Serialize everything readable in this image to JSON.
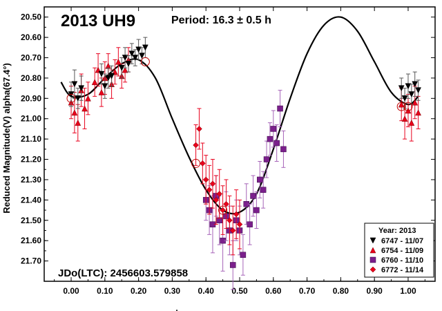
{
  "chart_data": {
    "type": "scatter",
    "title": "2013 UH9",
    "subtitle": "Period: 16.3 ± 0.5 h",
    "annotation": "JDo(LTC): 2456603.579858",
    "ylabel": "Reduced Magnitude(V) alpha(67.4°)",
    "xlabel": ".",
    "xlim": [
      -0.08,
      1.08
    ],
    "ylim": [
      20.45,
      21.8
    ],
    "y_inverted": true,
    "x_ticks": [
      "0.00",
      "0.10",
      "0.20",
      "0.30",
      "0.40",
      "0.50",
      "0.60",
      "0.70",
      "0.80",
      "0.90",
      "1.00"
    ],
    "y_ticks": [
      "20.50",
      "20.60",
      "20.70",
      "20.80",
      "20.90",
      "21.00",
      "21.10",
      "21.20",
      "21.30",
      "21.40",
      "21.50",
      "21.60",
      "21.70"
    ],
    "legend": {
      "title": "Year: 2013",
      "position": "bottom-right"
    },
    "fit_curve": {
      "x": [
        -0.03,
        0.0,
        0.05,
        0.1,
        0.15,
        0.2,
        0.25,
        0.3,
        0.35,
        0.4,
        0.45,
        0.5,
        0.55,
        0.6,
        0.65,
        0.7,
        0.75,
        0.8,
        0.85,
        0.9,
        0.95,
        1.0,
        1.03
      ],
      "y": [
        20.82,
        20.89,
        20.88,
        20.8,
        20.73,
        20.71,
        20.8,
        21.0,
        21.19,
        21.35,
        21.45,
        21.46,
        21.37,
        21.15,
        20.9,
        20.68,
        20.54,
        20.5,
        20.57,
        20.72,
        20.87,
        20.93,
        20.89
      ]
    },
    "series": [
      {
        "name": "6747 - 11/07",
        "marker": "triangle-down",
        "color": "#000000",
        "points": [
          {
            "x": 0.0,
            "y": 20.88,
            "e": 0.06
          },
          {
            "x": 0.01,
            "y": 20.83,
            "e": 0.07
          },
          {
            "x": 0.02,
            "y": 20.9,
            "e": 0.05
          },
          {
            "x": 0.03,
            "y": 20.85,
            "e": 0.06
          },
          {
            "x": 0.09,
            "y": 20.78,
            "e": 0.05
          },
          {
            "x": 0.1,
            "y": 20.84,
            "e": 0.06
          },
          {
            "x": 0.11,
            "y": 20.8,
            "e": 0.05
          },
          {
            "x": 0.12,
            "y": 20.79,
            "e": 0.05
          },
          {
            "x": 0.15,
            "y": 20.75,
            "e": 0.05
          },
          {
            "x": 0.16,
            "y": 20.7,
            "e": 0.05
          },
          {
            "x": 0.17,
            "y": 20.73,
            "e": 0.04
          },
          {
            "x": 0.18,
            "y": 20.68,
            "e": 0.05
          },
          {
            "x": 0.19,
            "y": 20.7,
            "e": 0.04
          },
          {
            "x": 0.2,
            "y": 20.66,
            "e": 0.05
          },
          {
            "x": 0.21,
            "y": 20.69,
            "e": 0.04
          },
          {
            "x": 0.22,
            "y": 20.65,
            "e": 0.05
          },
          {
            "x": 0.98,
            "y": 20.85,
            "e": 0.05
          },
          {
            "x": 0.99,
            "y": 20.9,
            "e": 0.05
          },
          {
            "x": 1.0,
            "y": 20.84,
            "e": 0.06
          },
          {
            "x": 1.01,
            "y": 20.88,
            "e": 0.05
          },
          {
            "x": 1.02,
            "y": 20.83,
            "e": 0.06
          },
          {
            "x": 1.03,
            "y": 20.86,
            "e": 0.05
          }
        ]
      },
      {
        "name": "6754 - 11/09",
        "marker": "triangle-up",
        "color": "#e8001c",
        "points": [
          {
            "x": 0.0,
            "y": 20.92,
            "e": 0.08
          },
          {
            "x": 0.01,
            "y": 20.97,
            "e": 0.1
          },
          {
            "x": 0.02,
            "y": 21.02,
            "e": 0.09
          },
          {
            "x": 0.03,
            "y": 20.86,
            "e": 0.08
          },
          {
            "x": 0.04,
            "y": 20.95,
            "e": 0.1
          },
          {
            "x": 0.05,
            "y": 20.9,
            "e": 0.08
          },
          {
            "x": 0.07,
            "y": 20.82,
            "e": 0.07
          },
          {
            "x": 0.08,
            "y": 20.76,
            "e": 0.08
          },
          {
            "x": 0.09,
            "y": 20.87,
            "e": 0.07
          },
          {
            "x": 0.1,
            "y": 20.8,
            "e": 0.08
          },
          {
            "x": 0.11,
            "y": 20.74,
            "e": 0.06
          },
          {
            "x": 0.12,
            "y": 20.83,
            "e": 0.07
          },
          {
            "x": 0.13,
            "y": 20.77,
            "e": 0.06
          },
          {
            "x": 0.14,
            "y": 20.72,
            "e": 0.07
          },
          {
            "x": 0.15,
            "y": 20.79,
            "e": 0.06
          },
          {
            "x": 0.16,
            "y": 20.76,
            "e": 0.06
          },
          {
            "x": 0.17,
            "y": 20.71,
            "e": 0.06
          },
          {
            "x": 0.98,
            "y": 20.93,
            "e": 0.08
          },
          {
            "x": 0.99,
            "y": 21.0,
            "e": 0.1
          },
          {
            "x": 1.0,
            "y": 20.96,
            "e": 0.08
          },
          {
            "x": 1.01,
            "y": 21.02,
            "e": 0.09
          },
          {
            "x": 1.02,
            "y": 20.92,
            "e": 0.08
          },
          {
            "x": 1.03,
            "y": 20.97,
            "e": 0.08
          }
        ]
      },
      {
        "name": "6760 - 11/10",
        "marker": "square",
        "color": "#7b1f8c",
        "points": [
          {
            "x": 0.4,
            "y": 21.4,
            "e": 0.1
          },
          {
            "x": 0.41,
            "y": 21.45,
            "e": 0.12
          },
          {
            "x": 0.42,
            "y": 21.52,
            "e": 0.14
          },
          {
            "x": 0.43,
            "y": 21.38,
            "e": 0.1
          },
          {
            "x": 0.44,
            "y": 21.5,
            "e": 0.12
          },
          {
            "x": 0.45,
            "y": 21.6,
            "e": 0.15
          },
          {
            "x": 0.46,
            "y": 21.48,
            "e": 0.12
          },
          {
            "x": 0.47,
            "y": 21.55,
            "e": 0.12
          },
          {
            "x": 0.48,
            "y": 21.72,
            "e": 0.12
          },
          {
            "x": 0.49,
            "y": 21.5,
            "e": 0.1
          },
          {
            "x": 0.5,
            "y": 21.55,
            "e": 0.12
          },
          {
            "x": 0.51,
            "y": 21.67,
            "e": 0.1
          },
          {
            "x": 0.52,
            "y": 21.42,
            "e": 0.1
          },
          {
            "x": 0.53,
            "y": 21.52,
            "e": 0.1
          },
          {
            "x": 0.54,
            "y": 21.38,
            "e": 0.1
          },
          {
            "x": 0.55,
            "y": 21.45,
            "e": 0.09
          },
          {
            "x": 0.56,
            "y": 21.3,
            "e": 0.09
          },
          {
            "x": 0.57,
            "y": 21.35,
            "e": 0.09
          },
          {
            "x": 0.58,
            "y": 21.2,
            "e": 0.09
          },
          {
            "x": 0.59,
            "y": 21.1,
            "e": 0.08
          },
          {
            "x": 0.6,
            "y": 21.05,
            "e": 0.09
          },
          {
            "x": 0.61,
            "y": 21.12,
            "e": 0.09
          },
          {
            "x": 0.62,
            "y": 20.95,
            "e": 0.09
          },
          {
            "x": 0.63,
            "y": 21.15,
            "e": 0.09
          }
        ]
      },
      {
        "name": "6772 - 11/14",
        "marker": "diamond",
        "color": "#e8001c",
        "points": [
          {
            "x": 0.37,
            "y": 21.13,
            "e": 0.1
          },
          {
            "x": 0.38,
            "y": 21.05,
            "e": 0.1
          },
          {
            "x": 0.39,
            "y": 21.22,
            "e": 0.1
          },
          {
            "x": 0.4,
            "y": 21.3,
            "e": 0.12
          },
          {
            "x": 0.41,
            "y": 21.35,
            "e": 0.12
          },
          {
            "x": 0.42,
            "y": 21.32,
            "e": 0.12
          },
          {
            "x": 0.43,
            "y": 21.4,
            "e": 0.12
          },
          {
            "x": 0.44,
            "y": 21.37,
            "e": 0.12
          },
          {
            "x": 0.45,
            "y": 21.45,
            "e": 0.12
          },
          {
            "x": 0.46,
            "y": 21.42,
            "e": 0.12
          },
          {
            "x": 0.47,
            "y": 21.5,
            "e": 0.12
          },
          {
            "x": 0.48,
            "y": 21.55,
            "e": 0.12
          },
          {
            "x": 0.49,
            "y": 21.47,
            "e": 0.12
          },
          {
            "x": 0.5,
            "y": 21.52,
            "e": 0.12
          }
        ]
      }
    ],
    "circled_points": [
      {
        "x": 0.0,
        "y": 20.9
      },
      {
        "x": 0.22,
        "y": 20.72
      },
      {
        "x": 0.37,
        "y": 21.22
      },
      {
        "x": 0.45,
        "y": 21.45
      },
      {
        "x": 1.0,
        "y": 20.94
      },
      {
        "x": 0.98,
        "y": 20.94
      }
    ]
  }
}
